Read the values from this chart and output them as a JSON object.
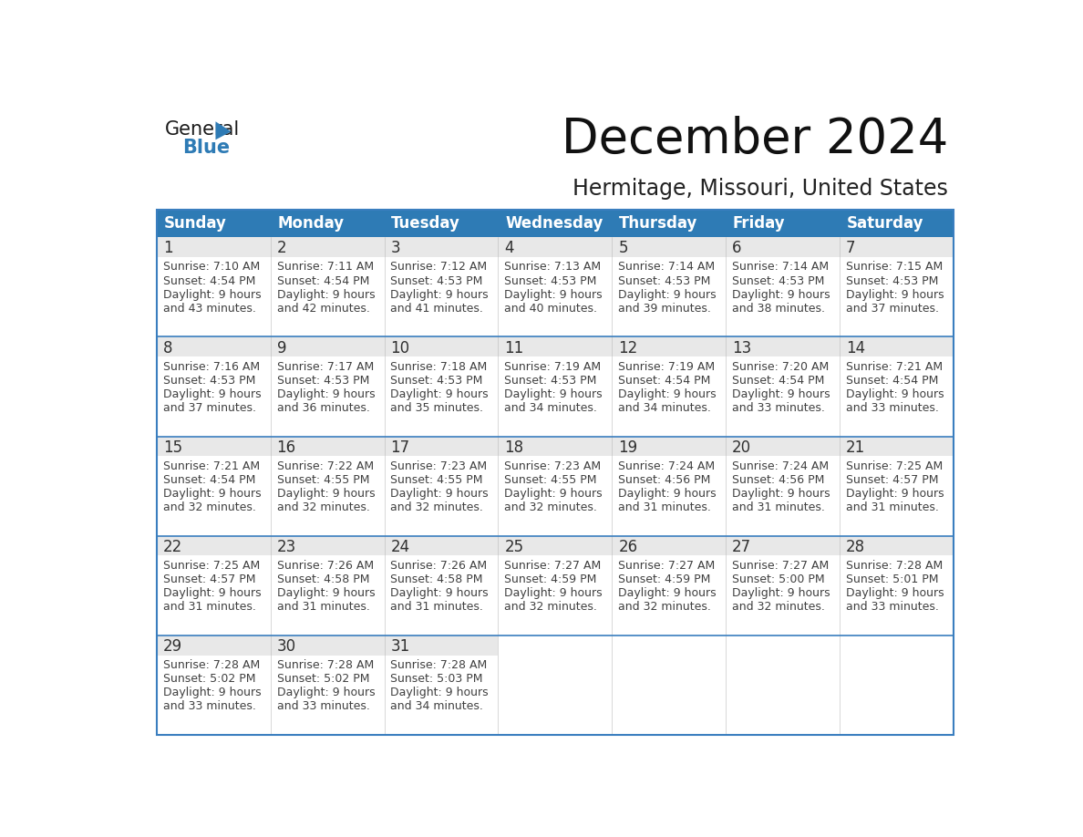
{
  "title": "December 2024",
  "subtitle": "Hermitage, Missouri, United States",
  "header_bg_color": "#2E7BB5",
  "header_text_color": "#FFFFFF",
  "day_names": [
    "Sunday",
    "Monday",
    "Tuesday",
    "Wednesday",
    "Thursday",
    "Friday",
    "Saturday"
  ],
  "days": [
    {
      "day": 1,
      "col": 0,
      "row": 0,
      "sunrise": "7:10 AM",
      "sunset": "4:54 PM",
      "daylight_hrs": "9 hours",
      "daylight_min": "43 minutes."
    },
    {
      "day": 2,
      "col": 1,
      "row": 0,
      "sunrise": "7:11 AM",
      "sunset": "4:54 PM",
      "daylight_hrs": "9 hours",
      "daylight_min": "42 minutes."
    },
    {
      "day": 3,
      "col": 2,
      "row": 0,
      "sunrise": "7:12 AM",
      "sunset": "4:53 PM",
      "daylight_hrs": "9 hours",
      "daylight_min": "41 minutes."
    },
    {
      "day": 4,
      "col": 3,
      "row": 0,
      "sunrise": "7:13 AM",
      "sunset": "4:53 PM",
      "daylight_hrs": "9 hours",
      "daylight_min": "40 minutes."
    },
    {
      "day": 5,
      "col": 4,
      "row": 0,
      "sunrise": "7:14 AM",
      "sunset": "4:53 PM",
      "daylight_hrs": "9 hours",
      "daylight_min": "39 minutes."
    },
    {
      "day": 6,
      "col": 5,
      "row": 0,
      "sunrise": "7:14 AM",
      "sunset": "4:53 PM",
      "daylight_hrs": "9 hours",
      "daylight_min": "38 minutes."
    },
    {
      "day": 7,
      "col": 6,
      "row": 0,
      "sunrise": "7:15 AM",
      "sunset": "4:53 PM",
      "daylight_hrs": "9 hours",
      "daylight_min": "37 minutes."
    },
    {
      "day": 8,
      "col": 0,
      "row": 1,
      "sunrise": "7:16 AM",
      "sunset": "4:53 PM",
      "daylight_hrs": "9 hours",
      "daylight_min": "37 minutes."
    },
    {
      "day": 9,
      "col": 1,
      "row": 1,
      "sunrise": "7:17 AM",
      "sunset": "4:53 PM",
      "daylight_hrs": "9 hours",
      "daylight_min": "36 minutes."
    },
    {
      "day": 10,
      "col": 2,
      "row": 1,
      "sunrise": "7:18 AM",
      "sunset": "4:53 PM",
      "daylight_hrs": "9 hours",
      "daylight_min": "35 minutes."
    },
    {
      "day": 11,
      "col": 3,
      "row": 1,
      "sunrise": "7:19 AM",
      "sunset": "4:53 PM",
      "daylight_hrs": "9 hours",
      "daylight_min": "34 minutes."
    },
    {
      "day": 12,
      "col": 4,
      "row": 1,
      "sunrise": "7:19 AM",
      "sunset": "4:54 PM",
      "daylight_hrs": "9 hours",
      "daylight_min": "34 minutes."
    },
    {
      "day": 13,
      "col": 5,
      "row": 1,
      "sunrise": "7:20 AM",
      "sunset": "4:54 PM",
      "daylight_hrs": "9 hours",
      "daylight_min": "33 minutes."
    },
    {
      "day": 14,
      "col": 6,
      "row": 1,
      "sunrise": "7:21 AM",
      "sunset": "4:54 PM",
      "daylight_hrs": "9 hours",
      "daylight_min": "33 minutes."
    },
    {
      "day": 15,
      "col": 0,
      "row": 2,
      "sunrise": "7:21 AM",
      "sunset": "4:54 PM",
      "daylight_hrs": "9 hours",
      "daylight_min": "32 minutes."
    },
    {
      "day": 16,
      "col": 1,
      "row": 2,
      "sunrise": "7:22 AM",
      "sunset": "4:55 PM",
      "daylight_hrs": "9 hours",
      "daylight_min": "32 minutes."
    },
    {
      "day": 17,
      "col": 2,
      "row": 2,
      "sunrise": "7:23 AM",
      "sunset": "4:55 PM",
      "daylight_hrs": "9 hours",
      "daylight_min": "32 minutes."
    },
    {
      "day": 18,
      "col": 3,
      "row": 2,
      "sunrise": "7:23 AM",
      "sunset": "4:55 PM",
      "daylight_hrs": "9 hours",
      "daylight_min": "32 minutes."
    },
    {
      "day": 19,
      "col": 4,
      "row": 2,
      "sunrise": "7:24 AM",
      "sunset": "4:56 PM",
      "daylight_hrs": "9 hours",
      "daylight_min": "31 minutes."
    },
    {
      "day": 20,
      "col": 5,
      "row": 2,
      "sunrise": "7:24 AM",
      "sunset": "4:56 PM",
      "daylight_hrs": "9 hours",
      "daylight_min": "31 minutes."
    },
    {
      "day": 21,
      "col": 6,
      "row": 2,
      "sunrise": "7:25 AM",
      "sunset": "4:57 PM",
      "daylight_hrs": "9 hours",
      "daylight_min": "31 minutes."
    },
    {
      "day": 22,
      "col": 0,
      "row": 3,
      "sunrise": "7:25 AM",
      "sunset": "4:57 PM",
      "daylight_hrs": "9 hours",
      "daylight_min": "31 minutes."
    },
    {
      "day": 23,
      "col": 1,
      "row": 3,
      "sunrise": "7:26 AM",
      "sunset": "4:58 PM",
      "daylight_hrs": "9 hours",
      "daylight_min": "31 minutes."
    },
    {
      "day": 24,
      "col": 2,
      "row": 3,
      "sunrise": "7:26 AM",
      "sunset": "4:58 PM",
      "daylight_hrs": "9 hours",
      "daylight_min": "31 minutes."
    },
    {
      "day": 25,
      "col": 3,
      "row": 3,
      "sunrise": "7:27 AM",
      "sunset": "4:59 PM",
      "daylight_hrs": "9 hours",
      "daylight_min": "32 minutes."
    },
    {
      "day": 26,
      "col": 4,
      "row": 3,
      "sunrise": "7:27 AM",
      "sunset": "4:59 PM",
      "daylight_hrs": "9 hours",
      "daylight_min": "32 minutes."
    },
    {
      "day": 27,
      "col": 5,
      "row": 3,
      "sunrise": "7:27 AM",
      "sunset": "5:00 PM",
      "daylight_hrs": "9 hours",
      "daylight_min": "32 minutes."
    },
    {
      "day": 28,
      "col": 6,
      "row": 3,
      "sunrise": "7:28 AM",
      "sunset": "5:01 PM",
      "daylight_hrs": "9 hours",
      "daylight_min": "33 minutes."
    },
    {
      "day": 29,
      "col": 0,
      "row": 4,
      "sunrise": "7:28 AM",
      "sunset": "5:02 PM",
      "daylight_hrs": "9 hours",
      "daylight_min": "33 minutes."
    },
    {
      "day": 30,
      "col": 1,
      "row": 4,
      "sunrise": "7:28 AM",
      "sunset": "5:02 PM",
      "daylight_hrs": "9 hours",
      "daylight_min": "33 minutes."
    },
    {
      "day": 31,
      "col": 2,
      "row": 4,
      "sunrise": "7:28 AM",
      "sunset": "5:03 PM",
      "daylight_hrs": "9 hours",
      "daylight_min": "34 minutes."
    }
  ],
  "bg_color": "#FFFFFF",
  "divider_color": "#3A7EBF",
  "row_separator_color": "#3A7EBF",
  "day_num_bg_color": "#E8E8E8",
  "text_color": "#404040",
  "day_num_color": "#303030",
  "logo_general_color": "#1a1a1a",
  "logo_blue_color": "#2E7BB5",
  "title_fontsize": 38,
  "subtitle_fontsize": 17,
  "header_fontsize": 12,
  "day_num_fontsize": 12,
  "cell_text_fontsize": 9.0
}
